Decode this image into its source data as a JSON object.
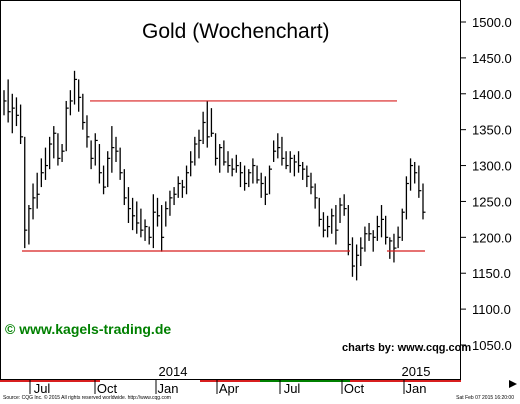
{
  "chart_data": {
    "type": "ohlc",
    "title": "Gold (Wochenchart)",
    "price_axis_ticks": [
      "1500.0",
      "1450.0",
      "1400.0",
      "1350.0",
      "1300.0",
      "1250.0",
      "1200.0",
      "1150.0",
      "1100.0",
      "1050.0"
    ],
    "ylim": [
      1015,
      1525
    ],
    "time_labels": [
      "Jul",
      "Oct",
      "Jan",
      "Apr",
      "Jul",
      "Oct",
      "Jan"
    ],
    "year_labels": [
      "2014",
      "2015"
    ],
    "series": [
      {
        "bars": [
          [
            1405,
            1370,
            1390
          ],
          [
            1420,
            1360,
            1375
          ],
          [
            1400,
            1345,
            1380
          ],
          [
            1395,
            1355,
            1370
          ],
          [
            1385,
            1330,
            1340
          ],
          [
            1340,
            1185,
            1210
          ],
          [
            1245,
            1190,
            1240
          ],
          [
            1275,
            1225,
            1255
          ],
          [
            1290,
            1240,
            1260
          ],
          [
            1310,
            1270,
            1290
          ],
          [
            1325,
            1280,
            1300
          ],
          [
            1340,
            1295,
            1330
          ],
          [
            1355,
            1310,
            1345
          ],
          [
            1345,
            1300,
            1310
          ],
          [
            1330,
            1305,
            1320
          ],
          [
            1390,
            1320,
            1380
          ],
          [
            1405,
            1370,
            1390
          ],
          [
            1432,
            1385,
            1420
          ],
          [
            1420,
            1375,
            1395
          ],
          [
            1400,
            1350,
            1360
          ],
          [
            1370,
            1325,
            1340
          ],
          [
            1335,
            1295,
            1310
          ],
          [
            1345,
            1300,
            1335
          ],
          [
            1330,
            1275,
            1290
          ],
          [
            1300,
            1260,
            1270
          ],
          [
            1320,
            1270,
            1310
          ],
          [
            1355,
            1290,
            1325
          ],
          [
            1340,
            1305,
            1320
          ],
          [
            1325,
            1280,
            1290
          ],
          [
            1295,
            1245,
            1255
          ],
          [
            1270,
            1220,
            1240
          ],
          [
            1255,
            1210,
            1230
          ],
          [
            1250,
            1205,
            1220
          ],
          [
            1240,
            1200,
            1210
          ],
          [
            1225,
            1195,
            1215
          ],
          [
            1215,
            1190,
            1200
          ],
          [
            1260,
            1185,
            1235
          ],
          [
            1255,
            1215,
            1230
          ],
          [
            1245,
            1180,
            1200
          ],
          [
            1250,
            1215,
            1240
          ],
          [
            1265,
            1230,
            1255
          ],
          [
            1270,
            1245,
            1260
          ],
          [
            1285,
            1255,
            1275
          ],
          [
            1280,
            1255,
            1270
          ],
          [
            1300,
            1260,
            1290
          ],
          [
            1320,
            1285,
            1305
          ],
          [
            1340,
            1300,
            1330
          ],
          [
            1350,
            1310,
            1335
          ],
          [
            1375,
            1330,
            1360
          ],
          [
            1390,
            1325,
            1340
          ],
          [
            1380,
            1340,
            1345
          ],
          [
            1345,
            1300,
            1310
          ],
          [
            1330,
            1290,
            1325
          ],
          [
            1335,
            1300,
            1305
          ],
          [
            1320,
            1290,
            1300
          ],
          [
            1310,
            1285,
            1295
          ],
          [
            1315,
            1290,
            1300
          ],
          [
            1305,
            1270,
            1290
          ],
          [
            1300,
            1265,
            1275
          ],
          [
            1295,
            1270,
            1290
          ],
          [
            1310,
            1275,
            1300
          ],
          [
            1300,
            1275,
            1280
          ],
          [
            1290,
            1255,
            1275
          ],
          [
            1285,
            1245,
            1260
          ],
          [
            1300,
            1260,
            1295
          ],
          [
            1335,
            1305,
            1320
          ],
          [
            1345,
            1310,
            1325
          ],
          [
            1340,
            1300,
            1310
          ],
          [
            1320,
            1295,
            1300
          ],
          [
            1320,
            1290,
            1310
          ],
          [
            1315,
            1285,
            1305
          ],
          [
            1320,
            1290,
            1300
          ],
          [
            1305,
            1280,
            1295
          ],
          [
            1300,
            1270,
            1285
          ],
          [
            1290,
            1260,
            1270
          ],
          [
            1275,
            1240,
            1255
          ],
          [
            1255,
            1215,
            1225
          ],
          [
            1235,
            1200,
            1210
          ],
          [
            1230,
            1200,
            1215
          ],
          [
            1240,
            1205,
            1230
          ],
          [
            1245,
            1190,
            1210
          ],
          [
            1255,
            1220,
            1245
          ],
          [
            1260,
            1230,
            1240
          ],
          [
            1245,
            1175,
            1190
          ],
          [
            1200,
            1145,
            1160
          ],
          [
            1190,
            1140,
            1175
          ],
          [
            1200,
            1160,
            1185
          ],
          [
            1215,
            1180,
            1205
          ],
          [
            1220,
            1195,
            1205
          ],
          [
            1210,
            1180,
            1200
          ],
          [
            1230,
            1195,
            1215
          ],
          [
            1245,
            1200,
            1225
          ],
          [
            1230,
            1190,
            1200
          ],
          [
            1200,
            1170,
            1195
          ],
          [
            1205,
            1165,
            1185
          ],
          [
            1215,
            1185,
            1200
          ],
          [
            1240,
            1195,
            1235
          ],
          [
            1285,
            1225,
            1275
          ],
          [
            1310,
            1265,
            1300
          ],
          [
            1305,
            1275,
            1290
          ],
          [
            1300,
            1255,
            1265
          ],
          [
            1275,
            1225,
            1235
          ]
        ]
      }
    ],
    "lines": [
      {
        "kind": "resistance",
        "level": 1390,
        "color": "#d81f1f"
      },
      {
        "kind": "support",
        "level": 1181,
        "color": "#d81f1f"
      },
      {
        "kind": "support",
        "level": 1181,
        "color": "#d81f1f"
      }
    ],
    "colors": {
      "bars": "#000000",
      "lines": "#d81f1f",
      "watermark": "#008000"
    }
  },
  "watermark": "© www.kagels-trading.de",
  "credit": "charts by: www.cqg.com",
  "footer_left": "Source: CQG Inc. © 2015 All rights reserved worldwide. http://www.cqg.com",
  "footer_right": "Sat Feb 07 2015 16:20:00"
}
